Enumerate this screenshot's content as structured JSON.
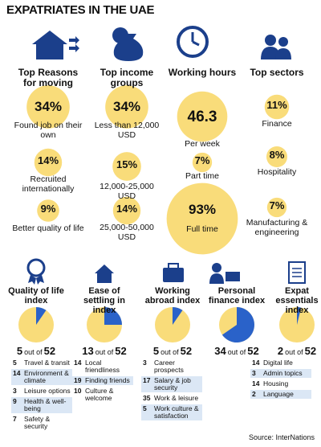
{
  "title": "EXPATRIATES IN THE UAE",
  "columns": [
    {
      "heading": "Top Reasons for moving",
      "items": [
        {
          "value": 34,
          "label": "34%",
          "text": "Found job on their own"
        },
        {
          "value": 14,
          "label": "14%",
          "text": "Recruited internationally"
        },
        {
          "value": 9,
          "label": "9%",
          "text": "Better quality of life"
        }
      ]
    },
    {
      "heading": "Top income groups",
      "items": [
        {
          "value": 34,
          "label": "34%",
          "text": "Less than 12,000 USD"
        },
        {
          "value": 15,
          "label": "15%",
          "text": "12,000-25,000 USD"
        },
        {
          "value": 14,
          "label": "14%",
          "text": "25,000-50,000 USD"
        }
      ]
    },
    {
      "heading": "Working hours",
      "items": [
        {
          "value": 46.3,
          "text": "Per week"
        },
        {
          "value": 7,
          "label": "7%",
          "text": "Part time"
        },
        {
          "value": 93,
          "label": "93%",
          "text": "Full time"
        }
      ]
    },
    {
      "heading": "Top sectors",
      "items": [
        {
          "value": 11,
          "label": "11%",
          "text": "Finance"
        },
        {
          "value": 8,
          "label": "8%",
          "text": "Hospitality"
        },
        {
          "value": 7,
          "label": "7%",
          "text": "Manufacturing & engineering"
        }
      ]
    }
  ],
  "out_of": "out of",
  "indices": [
    {
      "heading": "Quality of life index",
      "rank": 5,
      "total": 52,
      "items": [
        {
          "rank": 5,
          "text": "Travel & transit"
        },
        {
          "rank": 14,
          "text": "Environment & climate"
        },
        {
          "rank": 3,
          "text": "Leisure options"
        },
        {
          "rank": 9,
          "text": "Health & well-being"
        },
        {
          "rank": 7,
          "text": "Safety & security"
        }
      ]
    },
    {
      "heading": "Ease of settling in index",
      "rank": 13,
      "total": 52,
      "items": [
        {
          "rank": 14,
          "text": "Local friendliness"
        },
        {
          "rank": 19,
          "text": "Finding friends"
        },
        {
          "rank": 10,
          "text": "Culture & welcome"
        }
      ]
    },
    {
      "heading": "Working abroad index",
      "rank": 5,
      "total": 52,
      "items": [
        {
          "rank": 3,
          "text": "Career prospects"
        },
        {
          "rank": 17,
          "text": "Salary & job security"
        },
        {
          "rank": 35,
          "text": "Work & leisure"
        },
        {
          "rank": 5,
          "text": "Work culture & satisfaction"
        }
      ]
    },
    {
      "heading": "Personal finance index",
      "rank": 34,
      "total": 52,
      "items": []
    },
    {
      "heading": "Expat essentials index",
      "rank": 2,
      "total": 52,
      "items": [
        {
          "rank": 14,
          "text": "Digital life"
        },
        {
          "rank": 3,
          "text": "Admin topics"
        },
        {
          "rank": 14,
          "text": "Housing"
        },
        {
          "rank": 2,
          "text": "Language"
        }
      ]
    }
  ],
  "source": "Source: InterNations"
}
